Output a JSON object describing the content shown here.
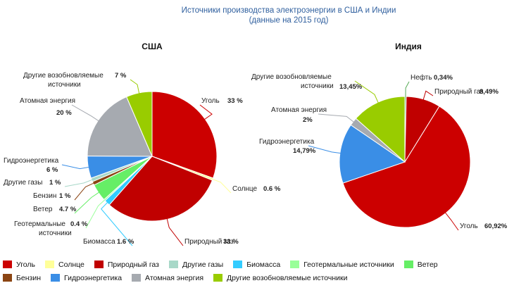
{
  "title": {
    "line1": "Источники производства электроэнергии в США и Индии",
    "line2": "(данные на 2015 год)"
  },
  "colors": {
    "coal": "#cc0000",
    "solar": "#ffff99",
    "gas": "#c00000",
    "other_gas": "#a8d8c8",
    "biomass": "#33ccff",
    "geothermal": "#99ff99",
    "wind": "#66ee66",
    "petrol": "#8b4513",
    "hydro": "#3a8ee6",
    "nuclear": "#a6aab0",
    "other_renewables": "#99cc00",
    "oil": "#55aa55"
  },
  "legend": {
    "row1": [
      {
        "label": "Уголь",
        "color": "#cc0000"
      },
      {
        "label": "Солнце",
        "color": "#ffff99"
      },
      {
        "label": "Природный газ",
        "color": "#c00000"
      },
      {
        "label": "Другие газы",
        "color": "#a8d8c8"
      },
      {
        "label": "Биомасса",
        "color": "#33ccff"
      },
      {
        "label": "Геотермальные источники",
        "color": "#99ff99"
      },
      {
        "label": "Ветер",
        "color": "#66ee66"
      }
    ],
    "row2": [
      {
        "label": "Бензин",
        "color": "#8b4513"
      },
      {
        "label": "Гидроэнергетика",
        "color": "#3a8ee6"
      },
      {
        "label": "Атомная энергия",
        "color": "#a6aab0"
      },
      {
        "label": "Другие возобновляемые источники",
        "color": "#99cc00"
      }
    ]
  },
  "chart_data": [
    {
      "type": "pie",
      "title": "США",
      "slices": [
        {
          "name": "Уголь",
          "value": 33,
          "label": "Уголь",
          "value_label": "33 %",
          "color": "#cc0000"
        },
        {
          "name": "Солнце",
          "value": 0.6,
          "label": "Солнце",
          "value_label": "0.6 %",
          "color": "#ffff99"
        },
        {
          "name": "Природный газ",
          "value": 33,
          "label": "Природный газ",
          "value_label": "33 %",
          "color": "#c00000"
        },
        {
          "name": "Биомасса",
          "value": 1.6,
          "label": "Биомасса",
          "value_label": "1.6 %",
          "color": "#33ccff"
        },
        {
          "name": "Геотермальные источники",
          "value": 0.4,
          "label": "Геотермальные\nисточники",
          "value_label": "0.4 %",
          "color": "#99ff99"
        },
        {
          "name": "Ветер",
          "value": 4.7,
          "label": "Ветер",
          "value_label": "4.7 %",
          "color": "#66ee66"
        },
        {
          "name": "Бензин",
          "value": 1,
          "label": "Бензин",
          "value_label": "1 %",
          "color": "#8b4513"
        },
        {
          "name": "Другие газы",
          "value": 1,
          "label": "Другие газы",
          "value_label": "1 %",
          "color": "#a8d8c8"
        },
        {
          "name": "Гидроэнергетика",
          "value": 6,
          "label": "Гидроэнергетика",
          "value_label": "6 %",
          "color": "#3a8ee6"
        },
        {
          "name": "Атомная энергия",
          "value": 20,
          "label": "Атомная энергия",
          "value_label": "20 %",
          "color": "#a6aab0"
        },
        {
          "name": "Другие возобновляемые источники",
          "value": 7,
          "label": "Другие возобновляемые\nисточники",
          "value_label": "7 %",
          "color": "#99cc00"
        }
      ]
    },
    {
      "type": "pie",
      "title": "Индия",
      "slices": [
        {
          "name": "Нефть",
          "value": 0.34,
          "label": "Нефть",
          "value_label": "0,34%",
          "color": "#55aa55"
        },
        {
          "name": "Природный газ",
          "value": 8.49,
          "label": "Природный газ",
          "value_label": "8,49%",
          "color": "#c00000"
        },
        {
          "name": "Уголь",
          "value": 60.92,
          "label": "Уголь",
          "value_label": "60,92%",
          "color": "#cc0000"
        },
        {
          "name": "Гидроэнергетика",
          "value": 14.79,
          "label": "Гидроэнергетика",
          "value_label": "14,79%",
          "color": "#3a8ee6"
        },
        {
          "name": "Атомная энергия",
          "value": 2,
          "label": "Атомная энергия",
          "value_label": "2%",
          "color": "#a6aab0"
        },
        {
          "name": "Другие возобновляемые источники",
          "value": 13.45,
          "label": "Другие возобновляемые\nисточники",
          "value_label": "13,45%",
          "color": "#99cc00"
        }
      ]
    }
  ]
}
